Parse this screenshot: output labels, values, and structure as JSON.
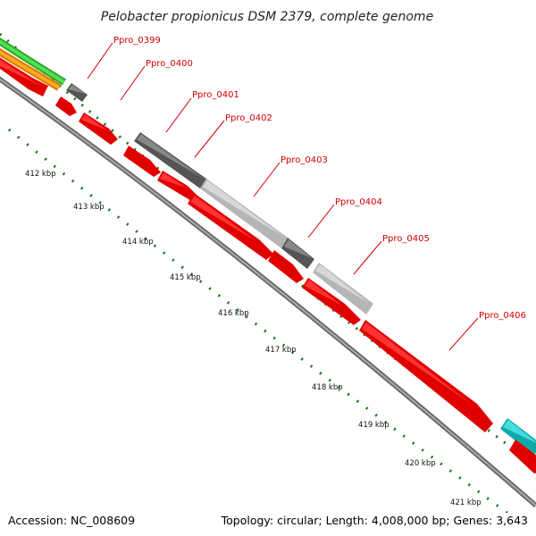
{
  "title": "Pelobacter propionicus DSM 2379, complete genome",
  "footer": {
    "accession": "Accession: NC_008609",
    "summary": "Topology: circular; Length: 4,008,000 bp; Genes: 3,643"
  },
  "colors": {
    "cds": "#ff0000",
    "cds_dark": "#a00000",
    "gray_dark": "#666666",
    "gray_light": "#c4c4c4",
    "green": "#33cc33",
    "orange": "#ff9900",
    "cyan": "#22cccc",
    "backbone": "#888888",
    "ticks": "#117711",
    "labels": "#d00000"
  },
  "genes": [
    {
      "id": "Ppro_0399",
      "label": "Ppro_0399"
    },
    {
      "id": "Ppro_0400",
      "label": "Ppro_0400"
    },
    {
      "id": "Ppro_0401",
      "label": "Ppro_0401"
    },
    {
      "id": "Ppro_0402",
      "label": "Ppro_0402"
    },
    {
      "id": "Ppro_0403",
      "label": "Ppro_0403"
    },
    {
      "id": "Ppro_0404",
      "label": "Ppro_0404"
    },
    {
      "id": "Ppro_0405",
      "label": "Ppro_0405"
    },
    {
      "id": "Ppro_0406",
      "label": "Ppro_0406"
    }
  ],
  "ticks": [
    {
      "label": "412 kbp"
    },
    {
      "label": "413 kbp"
    },
    {
      "label": "414 kbp"
    },
    {
      "label": "415 kbp"
    },
    {
      "label": "416 kbp"
    },
    {
      "label": "417 kbp"
    },
    {
      "label": "418 kbp"
    },
    {
      "label": "419 kbp"
    },
    {
      "label": "420 kbp"
    },
    {
      "label": "421 kbp"
    }
  ]
}
